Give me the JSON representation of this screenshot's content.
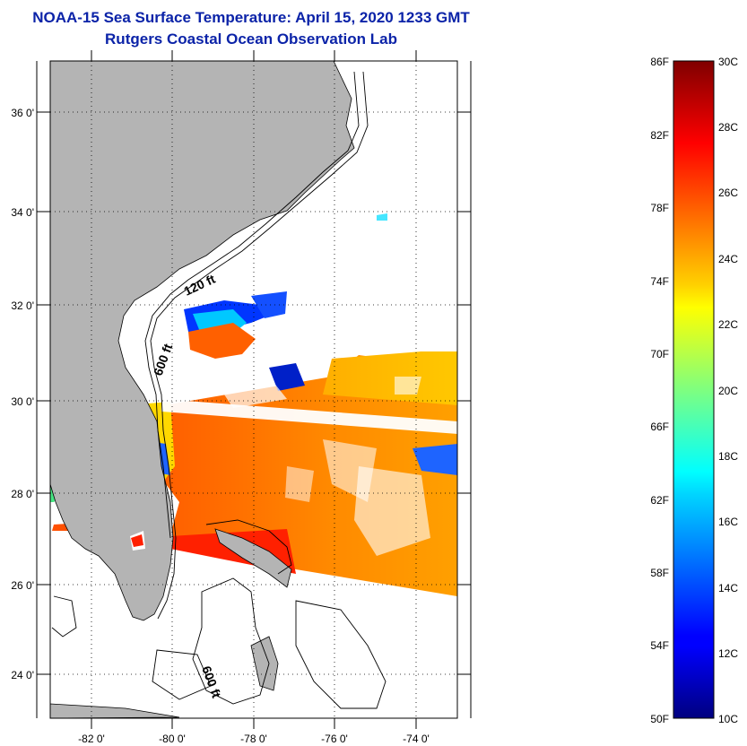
{
  "title": {
    "line1": "NOAA-15 Sea Surface Temperature:  April 15, 2020 1233 GMT",
    "line2": "Rutgers Coastal Ocean Observation Lab"
  },
  "map": {
    "lat_labels": [
      "36 0'",
      "34 0'",
      "32 0'",
      "30 0'",
      "28 0'",
      "26 0'",
      "24 0'"
    ],
    "lon_labels": [
      "-82 0'",
      "-80 0'",
      "-78 0'",
      "-76 0'",
      "-74 0'"
    ],
    "contour_labels": [
      "120 ft",
      "600 ft",
      "600 ft"
    ],
    "land_color": "#b4b4b4"
  },
  "colorbar": {
    "f_labels": [
      "86F",
      "82F",
      "78F",
      "74F",
      "70F",
      "66F",
      "62F",
      "58F",
      "54F",
      "50F"
    ],
    "c_labels": [
      "30C",
      "28C",
      "26C",
      "24C",
      "22C",
      "20C",
      "18C",
      "16C",
      "14C",
      "12C",
      "10C"
    ],
    "colormap": "jet"
  }
}
